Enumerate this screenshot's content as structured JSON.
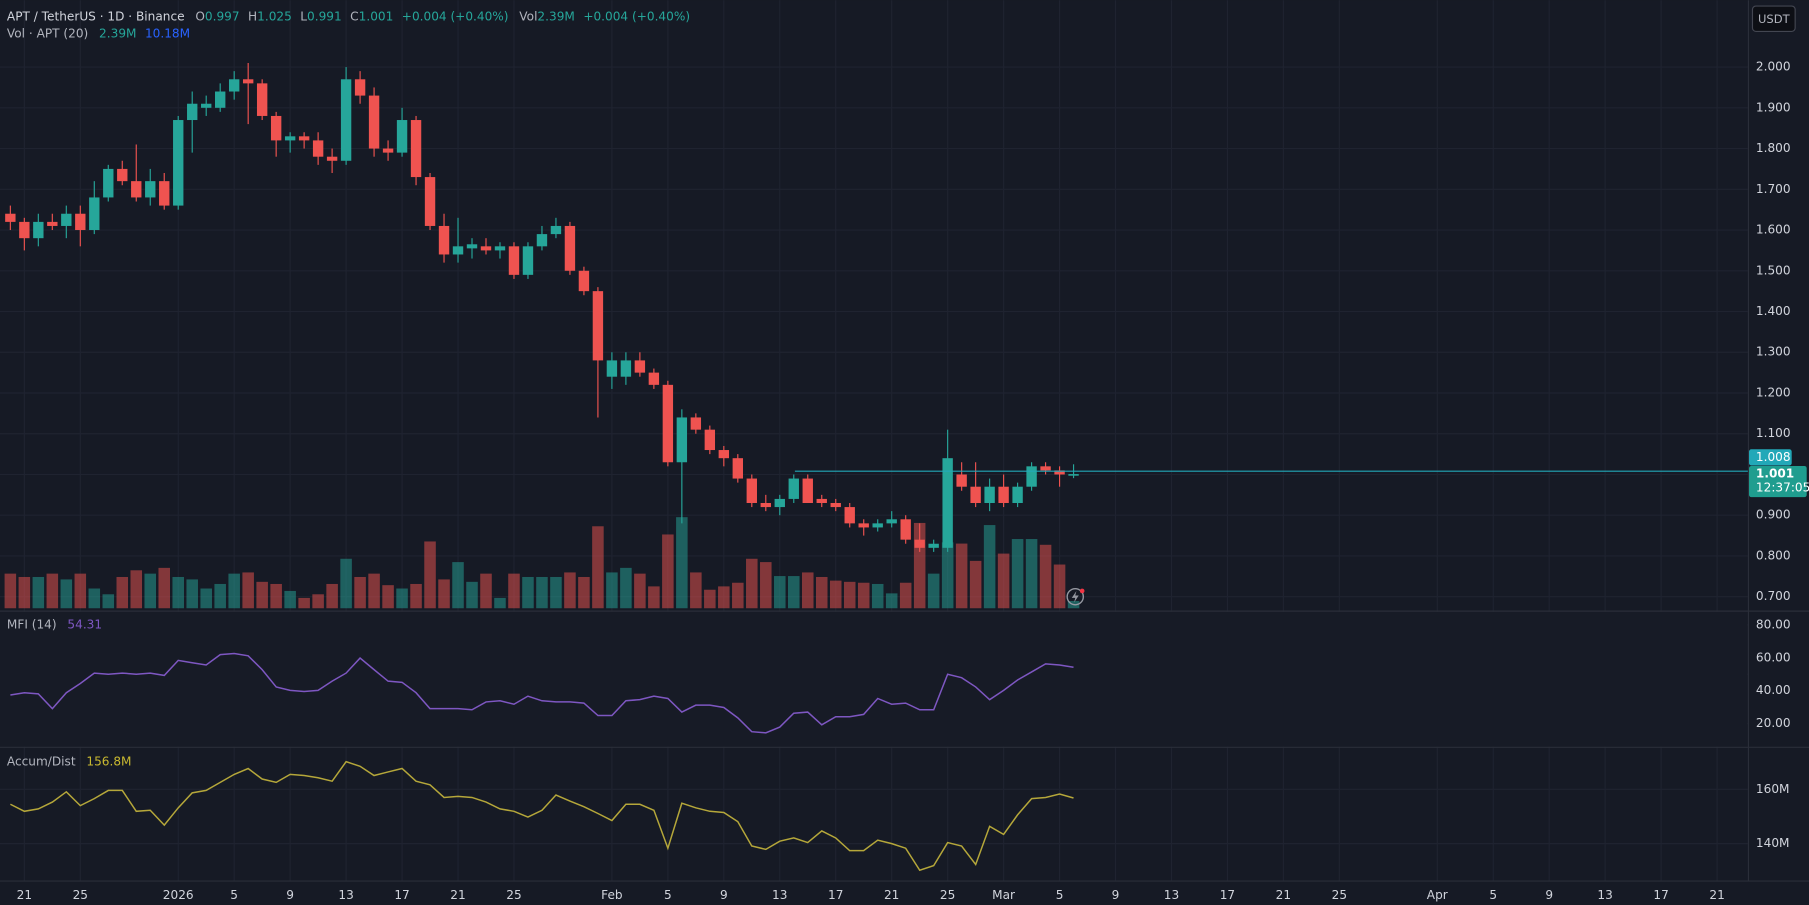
{
  "chart_data": {
    "type": "candlestick",
    "header": {
      "symbol": "APT / TetherUS · 1D · Binance",
      "fields": [
        {
          "key": "O",
          "value": "0.997"
        },
        {
          "key": "H",
          "value": "1.025"
        },
        {
          "key": "L",
          "value": "0.991"
        },
        {
          "key": "C",
          "value": "1.001"
        }
      ],
      "change": "+0.004 (+0.40%)",
      "vol_key": "Vol",
      "vol": "2.39M",
      "vol_change": "+0.004 (+0.40%)"
    },
    "volume_legend": {
      "title": "Vol · APT (20)",
      "value": "2.39M",
      "ma": "10.18M"
    },
    "currency": "USDT",
    "up_color": "#26a69a",
    "down_color": "#ef5350",
    "price_labels": [
      {
        "value": 1.008,
        "label": "1.008",
        "color": "#22a8b8"
      },
      {
        "value": 1.001,
        "label": "1.001",
        "color": "#1f9d8f"
      }
    ],
    "countdown": "12:37:05",
    "xlim": [
      -0.74,
      124.2
    ],
    "xticks": [
      {
        "value": 1,
        "label": "21"
      },
      {
        "value": 5,
        "label": "25"
      },
      {
        "value": 12,
        "label": "2026"
      },
      {
        "value": 16,
        "label": "5"
      },
      {
        "value": 20,
        "label": "9"
      },
      {
        "value": 24,
        "label": "13"
      },
      {
        "value": 28,
        "label": "17"
      },
      {
        "value": 32,
        "label": "21"
      },
      {
        "value": 36,
        "label": "25"
      },
      {
        "value": 43,
        "label": "Feb"
      },
      {
        "value": 47,
        "label": "5"
      },
      {
        "value": 51,
        "label": "9"
      },
      {
        "value": 55,
        "label": "13"
      },
      {
        "value": 59,
        "label": "17"
      },
      {
        "value": 63,
        "label": "21"
      },
      {
        "value": 67,
        "label": "25"
      },
      {
        "value": 71,
        "label": "Mar"
      },
      {
        "value": 75,
        "label": "5"
      },
      {
        "value": 79,
        "label": "9"
      },
      {
        "value": 83,
        "label": "13"
      },
      {
        "value": 87,
        "label": "17"
      },
      {
        "value": 91,
        "label": "21"
      },
      {
        "value": 95,
        "label": "25"
      },
      {
        "value": 102,
        "label": "Apr"
      },
      {
        "value": 106,
        "label": "5"
      },
      {
        "value": 110,
        "label": "9"
      },
      {
        "value": 114,
        "label": "13"
      },
      {
        "value": 118,
        "label": "17"
      },
      {
        "value": 122,
        "label": "21"
      }
    ],
    "ylim": [
      0.666,
      2.164
    ],
    "yticks": [
      {
        "value": 0.7,
        "label": "0.700"
      },
      {
        "value": 0.8,
        "label": "0.800"
      },
      {
        "value": 0.9,
        "label": "0.900"
      },
      {
        "value": 1.0,
        "label": "1.000"
      },
      {
        "value": 1.1,
        "label": "1.100"
      },
      {
        "value": 1.2,
        "label": "1.200"
      },
      {
        "value": 1.3,
        "label": "1.300"
      },
      {
        "value": 1.4,
        "label": "1.400"
      },
      {
        "value": 1.5,
        "label": "1.500"
      },
      {
        "value": 1.6,
        "label": "1.600"
      },
      {
        "value": 1.7,
        "label": "1.700"
      },
      {
        "value": 1.8,
        "label": "1.800"
      },
      {
        "value": 1.9,
        "label": "1.900"
      },
      {
        "value": 2.0,
        "label": "2.000"
      }
    ],
    "grid": true,
    "ohlc": [
      [
        1.64,
        1.66,
        1.6,
        1.62
      ],
      [
        1.62,
        1.63,
        1.55,
        1.58
      ],
      [
        1.58,
        1.64,
        1.56,
        1.62
      ],
      [
        1.62,
        1.64,
        1.6,
        1.61
      ],
      [
        1.61,
        1.66,
        1.58,
        1.64
      ],
      [
        1.64,
        1.66,
        1.56,
        1.6
      ],
      [
        1.6,
        1.72,
        1.59,
        1.68
      ],
      [
        1.68,
        1.76,
        1.67,
        1.75
      ],
      [
        1.75,
        1.77,
        1.71,
        1.72
      ],
      [
        1.72,
        1.81,
        1.67,
        1.68
      ],
      [
        1.68,
        1.75,
        1.66,
        1.72
      ],
      [
        1.72,
        1.74,
        1.65,
        1.66
      ],
      [
        1.66,
        1.88,
        1.65,
        1.87
      ],
      [
        1.87,
        1.94,
        1.79,
        1.91
      ],
      [
        1.9,
        1.93,
        1.88,
        1.91
      ],
      [
        1.9,
        1.96,
        1.89,
        1.94
      ],
      [
        1.94,
        1.99,
        1.92,
        1.97
      ],
      [
        1.97,
        2.01,
        1.86,
        1.96
      ],
      [
        1.96,
        1.97,
        1.87,
        1.88
      ],
      [
        1.88,
        1.89,
        1.78,
        1.82
      ],
      [
        1.82,
        1.84,
        1.79,
        1.83
      ],
      [
        1.83,
        1.84,
        1.8,
        1.82
      ],
      [
        1.82,
        1.84,
        1.76,
        1.78
      ],
      [
        1.78,
        1.8,
        1.74,
        1.77
      ],
      [
        1.77,
        2.0,
        1.76,
        1.97
      ],
      [
        1.97,
        1.99,
        1.91,
        1.93
      ],
      [
        1.93,
        1.95,
        1.78,
        1.8
      ],
      [
        1.8,
        1.82,
        1.77,
        1.79
      ],
      [
        1.79,
        1.9,
        1.78,
        1.87
      ],
      [
        1.87,
        1.88,
        1.71,
        1.73
      ],
      [
        1.73,
        1.74,
        1.6,
        1.61
      ],
      [
        1.61,
        1.64,
        1.52,
        1.54
      ],
      [
        1.54,
        1.63,
        1.52,
        1.56
      ],
      [
        1.555,
        1.58,
        1.53,
        1.565
      ],
      [
        1.56,
        1.58,
        1.54,
        1.55
      ],
      [
        1.55,
        1.57,
        1.53,
        1.56
      ],
      [
        1.56,
        1.57,
        1.48,
        1.49
      ],
      [
        1.49,
        1.57,
        1.48,
        1.56
      ],
      [
        1.56,
        1.61,
        1.55,
        1.59
      ],
      [
        1.59,
        1.63,
        1.58,
        1.61
      ],
      [
        1.61,
        1.62,
        1.49,
        1.5
      ],
      [
        1.5,
        1.51,
        1.44,
        1.45
      ],
      [
        1.45,
        1.46,
        1.14,
        1.28
      ],
      [
        1.24,
        1.3,
        1.21,
        1.28
      ],
      [
        1.24,
        1.3,
        1.22,
        1.28
      ],
      [
        1.28,
        1.3,
        1.24,
        1.25
      ],
      [
        1.25,
        1.26,
        1.21,
        1.22
      ],
      [
        1.22,
        1.23,
        1.02,
        1.03
      ],
      [
        1.03,
        1.16,
        0.88,
        1.14
      ],
      [
        1.14,
        1.15,
        1.1,
        1.11
      ],
      [
        1.11,
        1.12,
        1.05,
        1.06
      ],
      [
        1.06,
        1.07,
        1.02,
        1.04
      ],
      [
        1.04,
        1.05,
        0.98,
        0.99
      ],
      [
        0.99,
        1.0,
        0.92,
        0.93
      ],
      [
        0.93,
        0.95,
        0.91,
        0.92
      ],
      [
        0.92,
        0.95,
        0.9,
        0.94
      ],
      [
        0.94,
        1.0,
        0.93,
        0.99
      ],
      [
        0.99,
        1.0,
        0.93,
        0.93
      ],
      [
        0.94,
        0.95,
        0.92,
        0.93
      ],
      [
        0.93,
        0.94,
        0.91,
        0.92
      ],
      [
        0.92,
        0.93,
        0.87,
        0.88
      ],
      [
        0.88,
        0.89,
        0.85,
        0.87
      ],
      [
        0.87,
        0.89,
        0.86,
        0.88
      ],
      [
        0.88,
        0.91,
        0.87,
        0.89
      ],
      [
        0.89,
        0.9,
        0.83,
        0.84
      ],
      [
        0.84,
        0.88,
        0.81,
        0.82
      ],
      [
        0.82,
        0.84,
        0.81,
        0.83
      ],
      [
        0.82,
        1.11,
        0.81,
        1.04
      ],
      [
        1.0,
        1.03,
        0.96,
        0.97
      ],
      [
        0.97,
        1.03,
        0.92,
        0.93
      ],
      [
        0.93,
        0.99,
        0.91,
        0.97
      ],
      [
        0.97,
        1.0,
        0.92,
        0.93
      ],
      [
        0.93,
        0.98,
        0.92,
        0.97
      ],
      [
        0.97,
        1.03,
        0.96,
        1.02
      ],
      [
        1.02,
        1.03,
        1.0,
        1.01
      ],
      [
        1.01,
        1.02,
        0.97,
        1.0
      ],
      [
        0.997,
        1.025,
        0.991,
        1.001
      ]
    ],
    "volume": [
      11.4,
      10.3,
      10.3,
      11.4,
      9.5,
      11.4,
      6.5,
      4.6,
      10.3,
      12.5,
      11.4,
      13.3,
      10.3,
      9.5,
      6.5,
      8.0,
      11.4,
      11.8,
      8.7,
      8.0,
      5.7,
      3.4,
      4.6,
      8.0,
      16.3,
      10.3,
      11.4,
      7.6,
      6.5,
      8.0,
      22.0,
      9.5,
      15.2,
      8.7,
      11.4,
      3.4,
      11.4,
      10.3,
      10.3,
      10.3,
      11.8,
      10.3,
      27.0,
      11.8,
      13.3,
      11.4,
      7.2,
      24.3,
      30.0,
      11.8,
      6.1,
      7.2,
      8.4,
      16.3,
      15.2,
      10.6,
      10.6,
      11.8,
      10.3,
      9.1,
      8.7,
      8.4,
      8.0,
      4.9,
      8.4,
      28.1,
      11.4,
      21.7,
      21.3,
      15.6,
      27.4,
      18.0,
      22.8,
      22.8,
      20.9,
      14.4,
      2.39
    ],
    "mfi": {
      "title": "MFI (14)",
      "value_label": "54.31",
      "color": "#7e57c2",
      "ylim": [
        6,
        88
      ],
      "yticks": [
        {
          "value": 20,
          "label": "20.00"
        },
        {
          "value": 40,
          "label": "40.00"
        },
        {
          "value": 60,
          "label": "60.00"
        },
        {
          "value": 80,
          "label": "80.00"
        }
      ],
      "levels": [
        20,
        50,
        80
      ],
      "values": [
        37.4,
        38.8,
        38.1,
        29.1,
        38.8,
        44.4,
        50.7,
        50.0,
        50.7,
        50.0,
        50.7,
        49.3,
        58.4,
        57.0,
        55.6,
        61.9,
        62.6,
        61.2,
        52.8,
        42.3,
        40.2,
        39.5,
        40.2,
        45.8,
        50.7,
        59.8,
        52.8,
        45.8,
        45.1,
        38.8,
        29.1,
        29.1,
        29.1,
        28.4,
        33.2,
        33.9,
        31.8,
        36.7,
        33.9,
        33.2,
        33.2,
        32.5,
        24.9,
        24.9,
        33.9,
        34.6,
        36.7,
        35.3,
        27.0,
        31.2,
        31.2,
        29.8,
        23.5,
        15.1,
        14.4,
        17.9,
        26.3,
        27.0,
        19.3,
        24.2,
        24.2,
        25.6,
        35.3,
        31.8,
        32.5,
        28.4,
        28.4,
        50.0,
        47.9,
        42.3,
        34.6,
        40.2,
        46.5,
        51.4,
        56.3,
        55.6,
        54.31
      ]
    },
    "ad": {
      "title": "Accum/Dist",
      "value_label": "156.8M",
      "color": "#b5a73a",
      "ylim": [
        126.4,
        175.3
      ],
      "yticks": [
        {
          "value": 140,
          "label": "140M"
        },
        {
          "value": 160,
          "label": "160M"
        }
      ],
      "values": [
        154.5,
        151.9,
        152.8,
        155.3,
        159.1,
        154.0,
        156.6,
        159.6,
        159.6,
        151.9,
        152.3,
        146.8,
        153.2,
        158.7,
        159.6,
        162.6,
        165.5,
        167.7,
        163.8,
        162.6,
        165.5,
        165.1,
        164.3,
        163.0,
        170.2,
        168.5,
        165.1,
        166.4,
        167.7,
        163.0,
        161.7,
        157.0,
        157.4,
        157.0,
        155.3,
        152.8,
        151.9,
        149.8,
        152.3,
        157.9,
        155.7,
        153.6,
        151.1,
        148.5,
        154.5,
        154.5,
        152.3,
        138.3,
        154.9,
        153.2,
        151.9,
        151.5,
        148.1,
        139.1,
        137.9,
        140.9,
        142.1,
        140.4,
        144.7,
        142.1,
        137.4,
        137.4,
        141.3,
        140.0,
        138.3,
        130.2,
        131.9,
        140.4,
        139.1,
        132.3,
        146.4,
        143.4,
        150.6,
        156.6,
        157.0,
        158.3,
        156.8
      ]
    }
  }
}
